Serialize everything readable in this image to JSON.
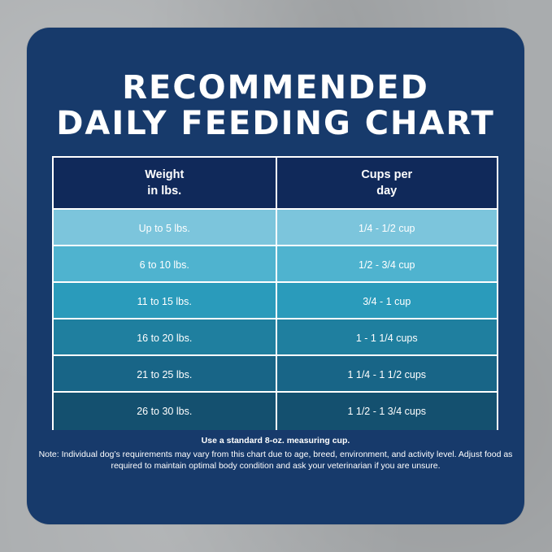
{
  "title": {
    "line1": "RECOMMENDED",
    "line2": "DAILY FEEDING CHART"
  },
  "table": {
    "headers": {
      "weight_line1": "Weight",
      "weight_line2": "in lbs.",
      "cups_line1": "Cups per",
      "cups_line2": "day"
    },
    "rows": [
      {
        "weight": "Up to 5 lbs.",
        "cups": "1/4 - 1/2 cup",
        "bg": "#7cc5dc"
      },
      {
        "weight": "6 to 10 lbs.",
        "cups": "1/2 - 3/4 cup",
        "bg": "#4fb3cf"
      },
      {
        "weight": "11 to 15 lbs.",
        "cups": "3/4 - 1 cup",
        "bg": "#2a9bbb"
      },
      {
        "weight": "16 to 20 lbs.",
        "cups": "1 - 1 1/4 cups",
        "bg": "#1f7f9f"
      },
      {
        "weight": "21 to 25 lbs.",
        "cups": "1 1/4 - 1 1/2 cups",
        "bg": "#186587"
      },
      {
        "weight": "26 to 30 lbs.",
        "cups": "1 1/2 - 1 3/4 cups",
        "bg": "#14506f"
      }
    ]
  },
  "footnote": {
    "bold": "Use a standard 8-oz. measuring cup.",
    "note": "Note: Individual dog’s requirements may vary from this chart due to age, breed, environment, and activity level. Adjust food as required to maintain optimal body condition and ask your veterinarian if you are unsure."
  },
  "colors": {
    "card": "#173a6b",
    "header": "#10295a",
    "border": "#ffffff"
  }
}
